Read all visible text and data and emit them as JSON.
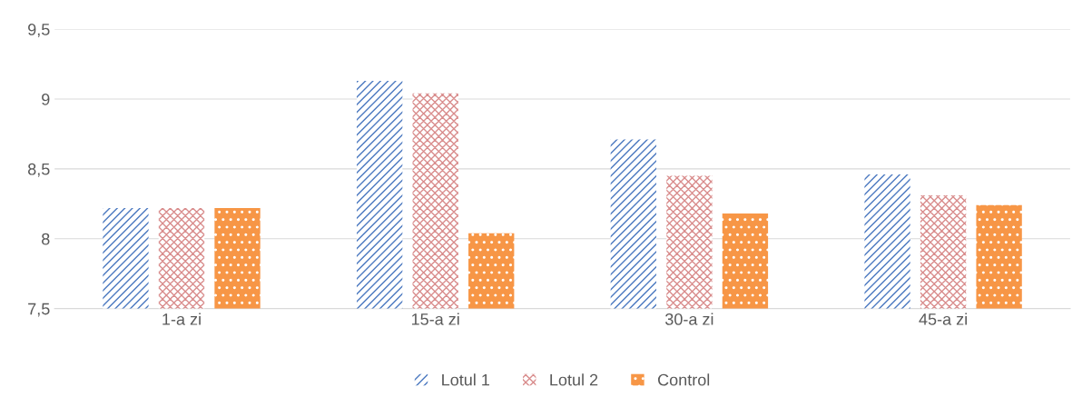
{
  "chart_data": {
    "type": "bar",
    "categories": [
      "1-a zi",
      "15-a zi",
      "30-a zi",
      "45-a zi"
    ],
    "series": [
      {
        "name": "Lotul 1",
        "color": "#4a78c0",
        "values": [
          8.22,
          9.13,
          8.71,
          8.46
        ]
      },
      {
        "name": "Lotul 2",
        "color": "#d98c8c",
        "values": [
          8.22,
          9.04,
          8.45,
          8.31
        ]
      },
      {
        "name": "Control",
        "color": "#f79646",
        "values": [
          8.22,
          8.04,
          8.18,
          8.24
        ]
      }
    ],
    "ylim": [
      7.5,
      9.5
    ],
    "yticks": [
      {
        "value": 7.5,
        "label": "7,5"
      },
      8,
      {
        "value": 8.5,
        "label": "8,5"
      },
      9,
      {
        "value": 9.5,
        "label": "9,5"
      }
    ],
    "grid": "y",
    "legend": "bottom"
  }
}
